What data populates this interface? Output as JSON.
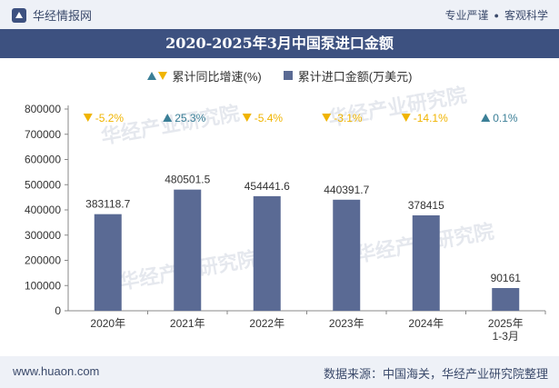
{
  "header": {
    "brand": "华经情报网",
    "tagline_left": "专业严谨",
    "tagline_right": "客观科学"
  },
  "title": "2020-2025年3月中国泵进口金额",
  "legend": {
    "growth": "累计同比增速(%)",
    "amount": "累计进口金额(万美元)"
  },
  "footer": {
    "website": "www.huaon.com",
    "source": "数据来源：中国海关，华经产业研究院整理"
  },
  "watermark": {
    "cn": "华经产业研究院",
    "en": "www.huaon.com"
  },
  "colors": {
    "bar": "#5a6a94",
    "up": "#3b7f97",
    "down": "#f0b400",
    "title_bg": "#3d5180"
  },
  "chart_data": {
    "type": "bar",
    "categories": [
      "2020年",
      "2021年",
      "2022年",
      "2023年",
      "2024年",
      "2025年\n1-3月"
    ],
    "series": [
      {
        "name": "累计进口金额(万美元)",
        "values": [
          383118.7,
          480501.5,
          454441.6,
          440391.7,
          378415,
          90161
        ]
      }
    ],
    "value_labels": [
      "383118.7",
      "480501.5",
      "454441.6",
      "440391.7",
      "378415",
      "90161"
    ],
    "growth": {
      "name": "累计同比增速(%)",
      "values": [
        -5.2,
        25.3,
        -5.4,
        -3.1,
        -14.1,
        0.1
      ],
      "labels": [
        "-5.2%",
        "25.3%",
        "-5.4%",
        "-3.1%",
        "-14.1%",
        "0.1%"
      ]
    },
    "yticks": [
      "0",
      "100000",
      "200000",
      "300000",
      "400000",
      "500000",
      "600000",
      "700000",
      "800000"
    ],
    "ylim": [
      0,
      800000
    ],
    "grid": false,
    "legend_position": "top"
  }
}
